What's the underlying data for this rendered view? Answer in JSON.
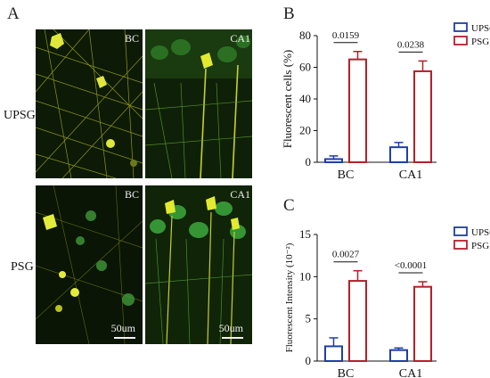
{
  "panel_labels": {
    "a": "A",
    "b": "B",
    "c": "C"
  },
  "row_labels": {
    "top": "UPSG",
    "bottom": "PSG"
  },
  "micrographs": {
    "tl_label": "BC",
    "tr_label": "CA1",
    "bl_label": "BC",
    "br_label": "CA1",
    "bl_scale": "50um",
    "br_scale": "50um"
  },
  "legend": {
    "upsg": "UPSG",
    "psg": "PSG"
  },
  "colors": {
    "upsg": "#1f3fa8",
    "psg": "#b5202a",
    "fluor": "#d9e02a",
    "green": "#3fa83a"
  },
  "chart_data": [
    {
      "type": "bar",
      "panel": "B",
      "categories": [
        "BC",
        "CA1"
      ],
      "series": [
        {
          "name": "UPSG",
          "values": [
            2,
            9.5
          ],
          "errors": [
            2,
            3
          ]
        },
        {
          "name": "PSG",
          "values": [
            65,
            57.5
          ],
          "errors": [
            5,
            6.5
          ]
        }
      ],
      "ylabel": "Fluorescent cells (%)",
      "ylim": [
        0,
        80
      ],
      "yticks": [
        "0",
        "20",
        "40",
        "60",
        "80"
      ],
      "annotations": [
        "0.0159",
        "0.0238"
      ]
    },
    {
      "type": "bar",
      "panel": "C",
      "categories": [
        "BC",
        "CA1"
      ],
      "series": [
        {
          "name": "UPSG",
          "values": [
            1.75,
            1.3
          ],
          "errors": [
            1,
            0.25
          ]
        },
        {
          "name": "PSG",
          "values": [
            9.5,
            8.8
          ],
          "errors": [
            1.2,
            0.6
          ]
        }
      ],
      "ylabel": "Fluorescent Intensity (10⁻²)",
      "ylim": [
        0,
        15
      ],
      "yticks": [
        "0",
        "5",
        "10",
        "15"
      ],
      "annotations": [
        "0.0027",
        "<0.0001"
      ]
    }
  ]
}
